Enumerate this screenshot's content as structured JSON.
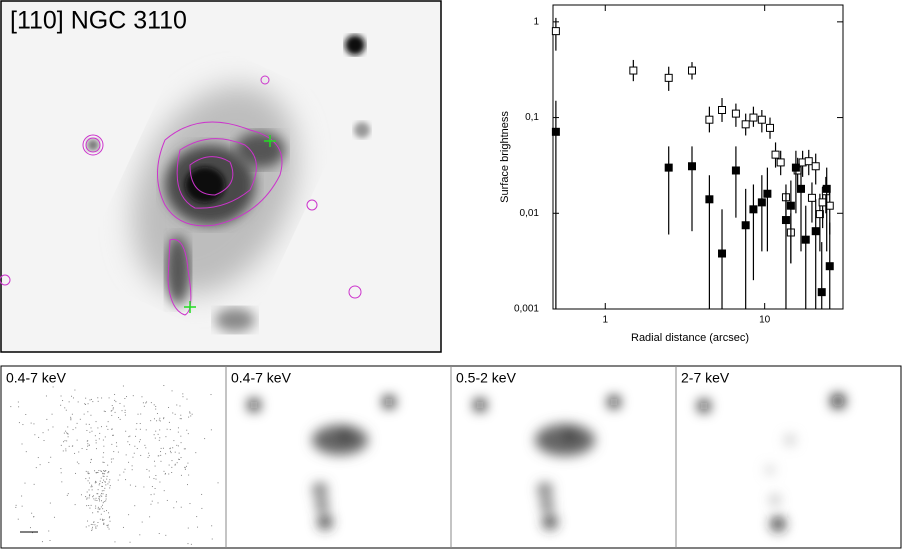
{
  "figure": {
    "main_image_label": "[110] NGC 3110",
    "panel_labels": [
      "0.4-7 keV",
      "0.4-7 keV",
      "0.5-2 keV",
      "2-7 keV"
    ]
  },
  "chart_data": {
    "type": "scatter",
    "xlabel": "Radial distance (arcsec)",
    "ylabel": "Surface brightness",
    "xscale": "log",
    "yscale": "log",
    "xlim": [
      0.47,
      31
    ],
    "ylim": [
      0.001,
      1.5
    ],
    "xticks": [
      1,
      10
    ],
    "yticks": [
      1,
      {
        "value": 0.1,
        "label": "0,1"
      },
      {
        "value": 0.01,
        "label": "0,01"
      },
      {
        "value": 0.001,
        "label": "0,001"
      }
    ],
    "series": [
      {
        "marker": "open-square",
        "color": "#000000",
        "x": [
          0.49,
          1.5,
          2.5,
          3.5,
          4.5,
          5.4,
          6.6,
          7.6,
          8.5,
          9.6,
          10.8,
          11.7,
          12.6,
          13.6,
          14.6,
          16.1,
          17.3,
          18.9,
          19.8,
          20.9,
          22.2,
          23.1,
          24.2,
          25.6
        ],
        "values": [
          0.8,
          0.31,
          0.26,
          0.31,
          0.095,
          0.12,
          0.11,
          0.085,
          0.1,
          0.095,
          0.078,
          0.041,
          0.034,
          0.0147,
          0.0063,
          0.028,
          0.034,
          0.035,
          0.0145,
          0.031,
          0.0098,
          0.013,
          0.017,
          0.012
        ],
        "lower": [
          0.5,
          0.24,
          0.19,
          0.25,
          0.07,
          0.09,
          0.08,
          0.065,
          0.08,
          0.07,
          0.06,
          0.03,
          0.025,
          0.009,
          0.003,
          0.018,
          0.024,
          0.025,
          0.008,
          0.02,
          0.004,
          0.007,
          0.01,
          0.006
        ],
        "upper": [
          1.1,
          0.4,
          0.34,
          0.38,
          0.13,
          0.16,
          0.14,
          0.11,
          0.13,
          0.12,
          0.1,
          0.055,
          0.045,
          0.02,
          0.01,
          0.038,
          0.045,
          0.046,
          0.021,
          0.042,
          0.016,
          0.019,
          0.024,
          0.018
        ]
      },
      {
        "marker": "filled-square",
        "color": "#000000",
        "x": [
          0.49,
          2.5,
          3.5,
          4.5,
          5.4,
          6.6,
          7.6,
          8.5,
          9.6,
          10.4,
          13.6,
          14.6,
          15.7,
          16.9,
          18.1,
          20.9,
          22.8,
          24.5,
          25.6
        ],
        "values": [
          0.071,
          0.03,
          0.031,
          0.014,
          0.0038,
          0.028,
          0.0075,
          0.011,
          0.013,
          0.016,
          0.0085,
          0.012,
          0.03,
          0.018,
          0.0053,
          0.0065,
          0.0015,
          0.018,
          0.0028
        ],
        "lower": [
          0.001,
          0.006,
          0.0065,
          0.001,
          0.001,
          0.009,
          0.001,
          0.002,
          0.004,
          0.004,
          0.001,
          0.003,
          0.01,
          0.004,
          0.001,
          0.001,
          0.001,
          0.004,
          0.001
        ],
        "upper": [
          0.15,
          0.05,
          0.05,
          0.025,
          0.011,
          0.05,
          0.018,
          0.02,
          0.025,
          0.03,
          0.017,
          0.022,
          0.045,
          0.03,
          0.012,
          0.014,
          0.005,
          0.03,
          0.008
        ]
      }
    ]
  }
}
